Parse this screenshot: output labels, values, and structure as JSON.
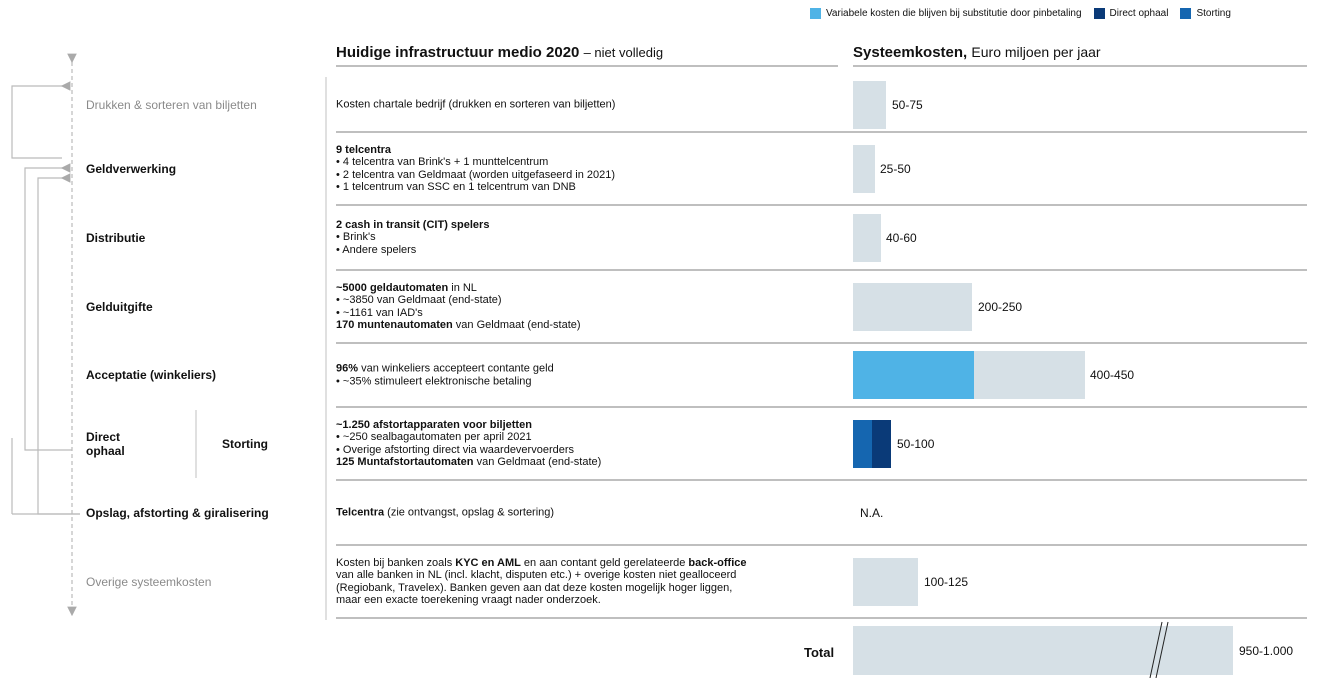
{
  "legend": [
    "Variabele kosten die blijven bij substitutie door pinbetaling",
    "Direct ophaal",
    "Storting"
  ],
  "header": {
    "infra_title": "Huidige infrastructuur medio 2020",
    "infra_note": "– niet volledig",
    "cost_title": "Systeemkosten,",
    "cost_note": "Euro miljoen per jaar"
  },
  "rows": [
    {
      "stage": "Drukken & sorteren van biljetten",
      "description": [
        [
          {
            "text": "Kosten chartale bedrijf (drukken en sorteren van biljetten)"
          }
        ]
      ],
      "cost": "50-75"
    },
    {
      "stage": "Geldverwerking",
      "description": [
        [
          {
            "text": "9 telcentra",
            "bold": true
          }
        ],
        [
          {
            "text": "• 4 telcentra van Brink's + 1 munttelcentrum"
          }
        ],
        [
          {
            "text": "• 2 telcentra van Geldmaat (worden uitgefaseerd in 2021)"
          }
        ],
        [
          {
            "text": "• 1 telcentrum van SSC en 1 telcentrum van DNB"
          }
        ]
      ],
      "cost": "25-50"
    },
    {
      "stage": "Distributie",
      "description": [
        [
          {
            "text": "2 cash in transit (CIT) spelers",
            "bold": true
          }
        ],
        [
          {
            "text": "• Brink's"
          }
        ],
        [
          {
            "text": "• Andere spelers"
          }
        ]
      ],
      "cost": "40-60"
    },
    {
      "stage": "Gelduitgifte",
      "description": [
        [
          {
            "text": "~5000 geldautomaten",
            "bold": true
          },
          {
            "text": " in NL"
          }
        ],
        [
          {
            "text": "• ~3850 van Geldmaat (end-state)"
          }
        ],
        [
          {
            "text": "• ~1161 van IAD's"
          }
        ],
        [
          {
            "text": "170 muntenautomaten",
            "bold": true
          },
          {
            "text": " van Geldmaat (end-state)"
          }
        ]
      ],
      "cost": "200-250"
    },
    {
      "stage": "Acceptatie (winkeliers)",
      "description": [
        [
          {
            "text": "96%",
            "bold": true
          },
          {
            "text": " van winkeliers accepteert contante geld"
          }
        ],
        [
          {
            "text": "• ~35% stimuleert elektronische betaling"
          }
        ]
      ],
      "cost": "400-450"
    },
    {
      "stage": "Direct ophaal",
      "stage2": "Storting",
      "description": [
        [
          {
            "text": "~1.250 afstortapparaten voor biljetten",
            "bold": true
          }
        ],
        [
          {
            "text": "• ~250 sealbagautomaten per april 2021"
          }
        ],
        [
          {
            "text": "• Overige afstorting direct via waardevervoerders"
          }
        ],
        [
          {
            "text": "125 Muntafstortautomaten",
            "bold": true
          },
          {
            "text": " van Geldmaat (end-state)"
          }
        ]
      ],
      "cost": "50-100"
    },
    {
      "stage": "Opslag, afstorting & giralisering",
      "description": [
        [
          {
            "text": "Telcentra",
            "bold": true
          },
          {
            "text": " (zie ontvangst, opslag & sortering)"
          }
        ]
      ],
      "cost": "N.A."
    },
    {
      "stage": "Overige systeemkosten",
      "description": [
        [
          {
            "text": "Kosten bij banken zoals "
          },
          {
            "text": "KYC en AML",
            "bold": true
          },
          {
            "text": " en aan contant geld gerelateerde "
          },
          {
            "text": "back-office",
            "bold": true
          }
        ],
        [
          {
            "text": "van alle banken in NL (incl. klacht, disputen etc.) + overige kosten niet gealloceerd"
          }
        ],
        [
          {
            "text": "(Regiobank, Travelex). Banken geven aan dat deze kosten mogelijk hoger liggen,"
          }
        ],
        [
          {
            "text": "maar een exacte toerekening vraagt nader onderzoek."
          }
        ]
      ],
      "cost": "100-125"
    }
  ],
  "total": {
    "label": "Total",
    "cost": "950-1.000"
  }
}
